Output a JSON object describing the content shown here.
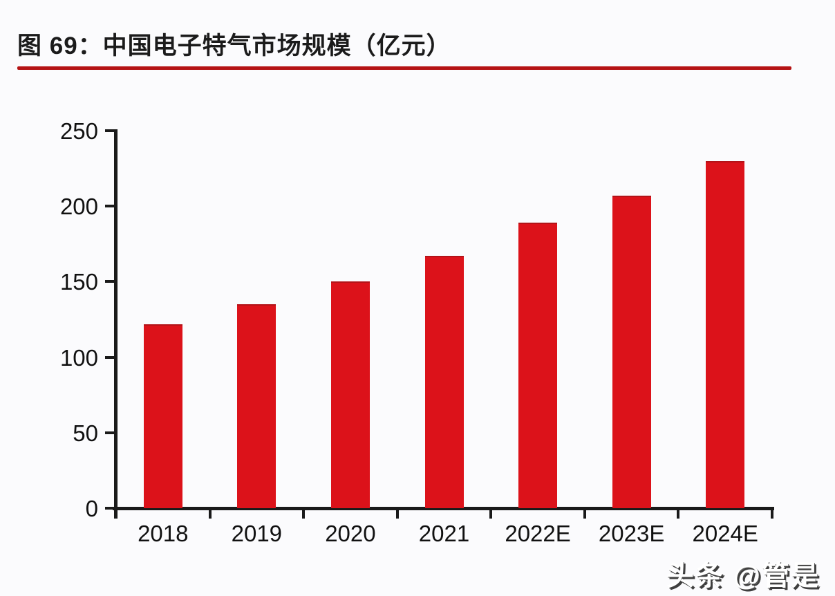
{
  "header": {
    "title": "图 69：中国电子特气市场规模（亿元）"
  },
  "watermark": {
    "text": "头条 @管是"
  },
  "colors": {
    "bar": "#dc121a",
    "bar_border": "#b31318",
    "title_underline": "#b51314",
    "axis": "#1a1a1a",
    "background": "#fbfbfd",
    "text": "#111111"
  },
  "chart_data": {
    "type": "bar",
    "title": "中国电子特气市场规模（亿元）",
    "figure_label": "图 69",
    "categories": [
      "2018",
      "2019",
      "2020",
      "2021",
      "2022E",
      "2023E",
      "2024E"
    ],
    "values": [
      122,
      135,
      150,
      167,
      189,
      207,
      230
    ],
    "xlabel": "",
    "ylabel": "",
    "ylim": [
      0,
      250
    ],
    "yticks": [
      0,
      50,
      100,
      150,
      200,
      250
    ],
    "grid": false,
    "legend_position": "none",
    "bar_color": "#dc121a"
  }
}
